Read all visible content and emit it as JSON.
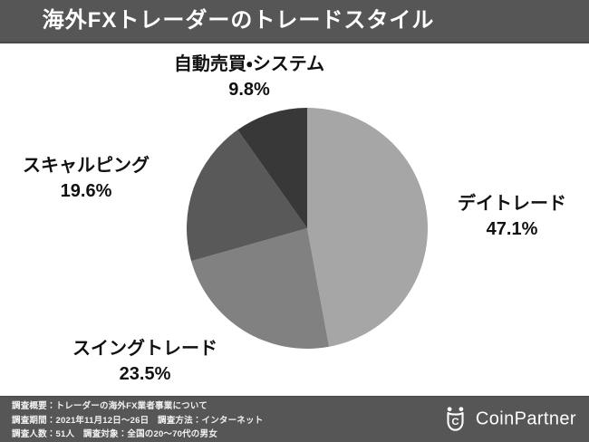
{
  "header": {
    "title": "海外FXトレーダーのトレードスタイル"
  },
  "chart_data": {
    "type": "pie",
    "title": "海外FXトレーダーのトレードスタイル",
    "labels": [
      "デイトレード",
      "スイングトレード",
      "スキャルピング",
      "自動売買・システム"
    ],
    "values": [
      47.1,
      23.5,
      19.6,
      9.8
    ],
    "value_labels": [
      "47.1%",
      "23.5%",
      "19.6%",
      "9.8%"
    ],
    "colors": [
      "#a6a6a6",
      "#818181",
      "#595959",
      "#383838"
    ],
    "start_angle_deg": 0,
    "direction": "clockwise",
    "legend_position": "none",
    "data_labels_position": "outside"
  },
  "footer": {
    "line1": "調査概要：トレーダーの海外FX業者事業について",
    "line2": "調査期間：2021年11月12日〜26日　調査方法：インターネット",
    "line3": "調査人数：51人　調査対象：全国の20〜70代の男女",
    "brand": "CoinPartner",
    "brand_icon": "coinpartner-crown-coin-icon"
  },
  "colors": {
    "bar_background": "#565656",
    "bar_text": "#ffffff",
    "label_text": "#111111",
    "canvas_background": "#ffffff"
  }
}
